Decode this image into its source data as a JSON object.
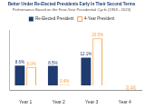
{
  "chart_data": {
    "type": "bar",
    "title": "Better Under Re-Elected Presidents Early In Their Second Terms",
    "subtitle": "Performance Based on the Four-Year Presidential Cycle (1958 - 2023)",
    "categories": [
      "Year 1",
      "Year 2",
      "Year 3",
      "Year 4"
    ],
    "series": [
      {
        "name": "Re-Elected President",
        "color": "#1f3b70",
        "values": [
          8.6,
          8.5,
          12.1,
          null
        ],
        "value_labels": [
          "8.6%",
          "8.5%",
          "12.1%",
          null
        ]
      },
      {
        "name": "4-Year President",
        "color": "#f4a340",
        "values": [
          8.0,
          0.4,
          20.5,
          -0.4
        ],
        "value_labels": [
          "8.0%",
          "0.4%",
          "20.5%",
          "-0.4%"
        ]
      }
    ],
    "ylim": [
      -2,
      24
    ],
    "grid": false,
    "legend": "top",
    "data_labels": true,
    "tick_labels": "x"
  }
}
